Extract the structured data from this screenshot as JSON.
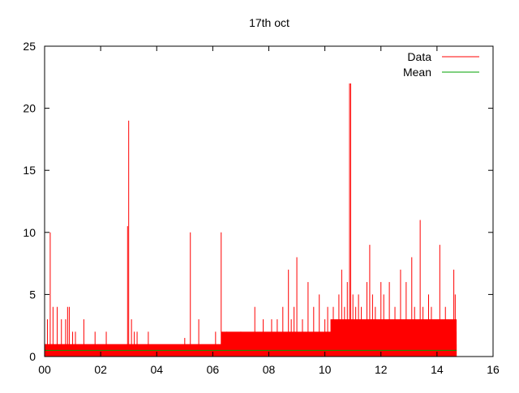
{
  "chart_data": {
    "type": "bar",
    "title": "17th oct",
    "xlabel": "",
    "ylabel": "",
    "xlim": [
      0,
      16
    ],
    "ylim": [
      0,
      25
    ],
    "x_tick_labels": [
      "00",
      "02",
      "04",
      "06",
      "08",
      "10",
      "12",
      "14",
      "16"
    ],
    "x_tick_values": [
      0,
      2,
      4,
      6,
      8,
      10,
      12,
      14,
      16
    ],
    "y_tick_labels": [
      "0",
      "5",
      "10",
      "15",
      "20",
      "25"
    ],
    "y_tick_values": [
      0,
      5,
      10,
      15,
      20,
      25
    ],
    "grid": false,
    "legend": {
      "position": "top-right",
      "entries": [
        {
          "label": "Data",
          "color": "#ff0000"
        },
        {
          "label": "Mean",
          "color": "#00a000"
        }
      ]
    },
    "series": [
      {
        "name": "Data",
        "color": "#ff0000",
        "baseline_spans": [
          {
            "x_start": 0.0,
            "x_end": 14.7,
            "value": 1
          },
          {
            "x_start": 6.3,
            "x_end": 14.7,
            "value": 2
          },
          {
            "x_start": 10.2,
            "x_end": 14.7,
            "value": 3
          }
        ],
        "spikes": [
          {
            "x": 0.1,
            "value": 3
          },
          {
            "x": 0.2,
            "value": 10
          },
          {
            "x": 0.3,
            "value": 4
          },
          {
            "x": 0.45,
            "value": 4
          },
          {
            "x": 0.6,
            "value": 3
          },
          {
            "x": 0.75,
            "value": 3
          },
          {
            "x": 0.82,
            "value": 4
          },
          {
            "x": 0.88,
            "value": 4
          },
          {
            "x": 1.0,
            "value": 2
          },
          {
            "x": 1.1,
            "value": 2
          },
          {
            "x": 1.4,
            "value": 3
          },
          {
            "x": 1.8,
            "value": 2
          },
          {
            "x": 2.2,
            "value": 2
          },
          {
            "x": 2.96,
            "value": 10.5
          },
          {
            "x": 3.0,
            "value": 19
          },
          {
            "x": 3.1,
            "value": 3
          },
          {
            "x": 3.2,
            "value": 2
          },
          {
            "x": 3.3,
            "value": 2
          },
          {
            "x": 3.7,
            "value": 2
          },
          {
            "x": 5.0,
            "value": 1.5
          },
          {
            "x": 5.2,
            "value": 10
          },
          {
            "x": 5.5,
            "value": 3
          },
          {
            "x": 6.1,
            "value": 2
          },
          {
            "x": 6.3,
            "value": 10
          },
          {
            "x": 6.5,
            "value": 2
          },
          {
            "x": 7.0,
            "value": 2
          },
          {
            "x": 7.5,
            "value": 4
          },
          {
            "x": 7.8,
            "value": 3
          },
          {
            "x": 8.1,
            "value": 3
          },
          {
            "x": 8.3,
            "value": 3
          },
          {
            "x": 8.5,
            "value": 4
          },
          {
            "x": 8.7,
            "value": 7
          },
          {
            "x": 8.8,
            "value": 3
          },
          {
            "x": 8.9,
            "value": 4
          },
          {
            "x": 9.0,
            "value": 8
          },
          {
            "x": 9.2,
            "value": 3
          },
          {
            "x": 9.4,
            "value": 6
          },
          {
            "x": 9.6,
            "value": 4
          },
          {
            "x": 9.8,
            "value": 5
          },
          {
            "x": 10.0,
            "value": 3
          },
          {
            "x": 10.1,
            "value": 4
          },
          {
            "x": 10.3,
            "value": 4
          },
          {
            "x": 10.5,
            "value": 5
          },
          {
            "x": 10.6,
            "value": 7
          },
          {
            "x": 10.7,
            "value": 4
          },
          {
            "x": 10.8,
            "value": 6
          },
          {
            "x": 10.88,
            "value": 22
          },
          {
            "x": 10.92,
            "value": 22
          },
          {
            "x": 11.0,
            "value": 5
          },
          {
            "x": 11.1,
            "value": 4
          },
          {
            "x": 11.2,
            "value": 5
          },
          {
            "x": 11.3,
            "value": 4
          },
          {
            "x": 11.5,
            "value": 6
          },
          {
            "x": 11.6,
            "value": 9
          },
          {
            "x": 11.7,
            "value": 5
          },
          {
            "x": 11.8,
            "value": 4
          },
          {
            "x": 12.0,
            "value": 6
          },
          {
            "x": 12.1,
            "value": 5
          },
          {
            "x": 12.3,
            "value": 6
          },
          {
            "x": 12.5,
            "value": 4
          },
          {
            "x": 12.7,
            "value": 7
          },
          {
            "x": 12.9,
            "value": 6
          },
          {
            "x": 13.1,
            "value": 8
          },
          {
            "x": 13.2,
            "value": 4
          },
          {
            "x": 13.4,
            "value": 11
          },
          {
            "x": 13.5,
            "value": 4
          },
          {
            "x": 13.7,
            "value": 5
          },
          {
            "x": 13.8,
            "value": 4
          },
          {
            "x": 14.1,
            "value": 9
          },
          {
            "x": 14.3,
            "value": 4
          },
          {
            "x": 14.4,
            "value": 3
          },
          {
            "x": 14.6,
            "value": 7
          },
          {
            "x": 14.65,
            "value": 5
          }
        ]
      },
      {
        "name": "Mean",
        "color": "#00a000",
        "x": [
          0.0,
          14.7
        ],
        "values": [
          0.5,
          0.5
        ]
      }
    ]
  }
}
